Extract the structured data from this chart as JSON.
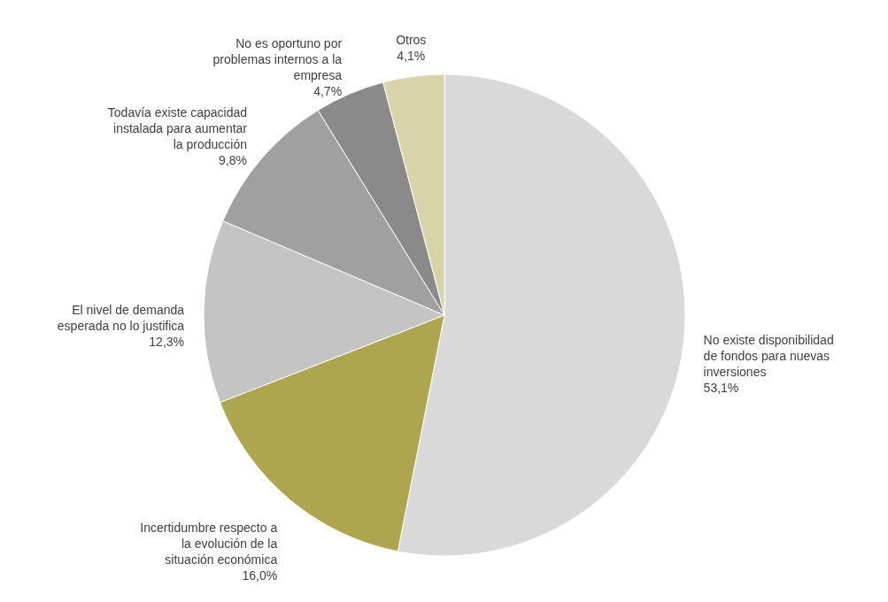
{
  "chart_data": {
    "type": "pie",
    "categories": [
      "No existe disponibilidad de fondos para nuevas inversiones",
      "Incertidumbre respecto a la evolución de la situación económica",
      "El nivel de demanda esperada no lo justifica",
      "Todavía existe capacidad instalada para aumentar la producción",
      "No es oportuno  por problemas internos a la empresa",
      "Otros"
    ],
    "values": [
      53.1,
      16.0,
      12.3,
      9.8,
      4.7,
      4.1
    ],
    "value_labels": [
      "53,1%",
      "16,0%",
      "12,3%",
      "9,8%",
      "4,7%",
      "4,1%"
    ],
    "colors": [
      "#d9d9d9",
      "#aea54f",
      "#c4c4c4",
      "#a0a0a0",
      "#8a8a8a",
      "#d8d3a8"
    ]
  }
}
